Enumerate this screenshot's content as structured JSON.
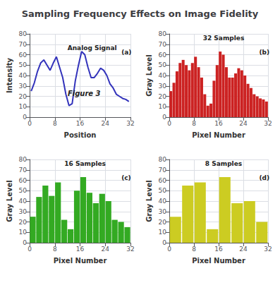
{
  "title": "Sampling Frequency Effects on Image Fidelity",
  "chart_data": [
    {
      "type": "line",
      "x_label": "Position",
      "y_label": "Intensity",
      "annotations": [
        "Analog Signal",
        "Figure 3",
        "(a)"
      ],
      "color": "#3333bb",
      "x": [
        0.5,
        1.5,
        2.5,
        3.5,
        4.5,
        5.5,
        6.5,
        7.5,
        8.5,
        9.5,
        10.5,
        11.5,
        12.5,
        13.5,
        14.5,
        15.5,
        16.5,
        17.5,
        18.5,
        19.5,
        20.5,
        21.5,
        22.5,
        23.5,
        24.5,
        25.5,
        26.5,
        27.5,
        28.5,
        29.5,
        30.5,
        31.5
      ],
      "values": [
        25,
        33,
        44,
        52,
        55,
        50,
        45,
        52,
        58,
        48,
        38,
        22,
        11,
        13,
        35,
        50,
        63,
        60,
        48,
        38,
        38,
        42,
        47,
        45,
        40,
        32,
        28,
        22,
        20,
        18,
        17,
        15
      ],
      "xlim": [
        0,
        32
      ],
      "xticks": [
        0,
        8,
        16,
        24,
        32
      ],
      "ylim": [
        0,
        80
      ],
      "yticks": [
        0,
        10,
        20,
        30,
        40,
        50,
        60,
        70,
        80
      ],
      "grid": true
    },
    {
      "type": "bar",
      "x_label": "Pixel Number",
      "y_label": "Gray Level",
      "annotations": [
        "32 Samples",
        "(b)"
      ],
      "color": "#cc2222",
      "x": [
        0.5,
        1.5,
        2.5,
        3.5,
        4.5,
        5.5,
        6.5,
        7.5,
        8.5,
        9.5,
        10.5,
        11.5,
        12.5,
        13.5,
        14.5,
        15.5,
        16.5,
        17.5,
        18.5,
        19.5,
        20.5,
        21.5,
        22.5,
        23.5,
        24.5,
        25.5,
        26.5,
        27.5,
        28.5,
        29.5,
        30.5,
        31.5
      ],
      "values": [
        25,
        33,
        44,
        52,
        55,
        50,
        45,
        52,
        58,
        48,
        38,
        22,
        11,
        13,
        35,
        50,
        63,
        60,
        48,
        38,
        38,
        42,
        47,
        45,
        40,
        32,
        28,
        22,
        20,
        18,
        17,
        15
      ],
      "xlim": [
        0,
        32
      ],
      "xticks": [
        0,
        8,
        16,
        24,
        32
      ],
      "ylim": [
        0,
        80
      ],
      "yticks": [
        0,
        10,
        20,
        30,
        40,
        50,
        60,
        70,
        80
      ],
      "grid": true
    },
    {
      "type": "bar",
      "x_label": "Pixel Number",
      "y_label": "Gray Level",
      "annotations": [
        "16 Samples",
        "(c)"
      ],
      "color": "#33aa22",
      "x": [
        1,
        3,
        5,
        7,
        9,
        11,
        13,
        15,
        17,
        19,
        21,
        23,
        25,
        27,
        29,
        31
      ],
      "values": [
        25,
        44,
        55,
        45,
        58,
        22,
        13,
        50,
        63,
        48,
        38,
        47,
        40,
        22,
        20,
        15
      ],
      "xlim": [
        0,
        32
      ],
      "xticks": [
        0,
        8,
        16,
        24,
        32
      ],
      "ylim": [
        0,
        80
      ],
      "yticks": [
        0,
        10,
        20,
        30,
        40,
        50,
        60,
        70,
        80
      ],
      "grid": true
    },
    {
      "type": "bar",
      "x_label": "Pixel Number",
      "y_label": "Gray Level",
      "annotations": [
        "8 Samples",
        "(d)"
      ],
      "color": "#cccc22",
      "x": [
        2,
        6,
        10,
        14,
        18,
        22,
        26,
        30
      ],
      "values": [
        25,
        55,
        58,
        13,
        63,
        38,
        40,
        20
      ],
      "xlim": [
        0,
        32
      ],
      "xticks": [
        0,
        8,
        16,
        24,
        32
      ],
      "ylim": [
        0,
        80
      ],
      "yticks": [
        0,
        10,
        20,
        30,
        40,
        50,
        60,
        70,
        80
      ],
      "grid": true
    }
  ]
}
